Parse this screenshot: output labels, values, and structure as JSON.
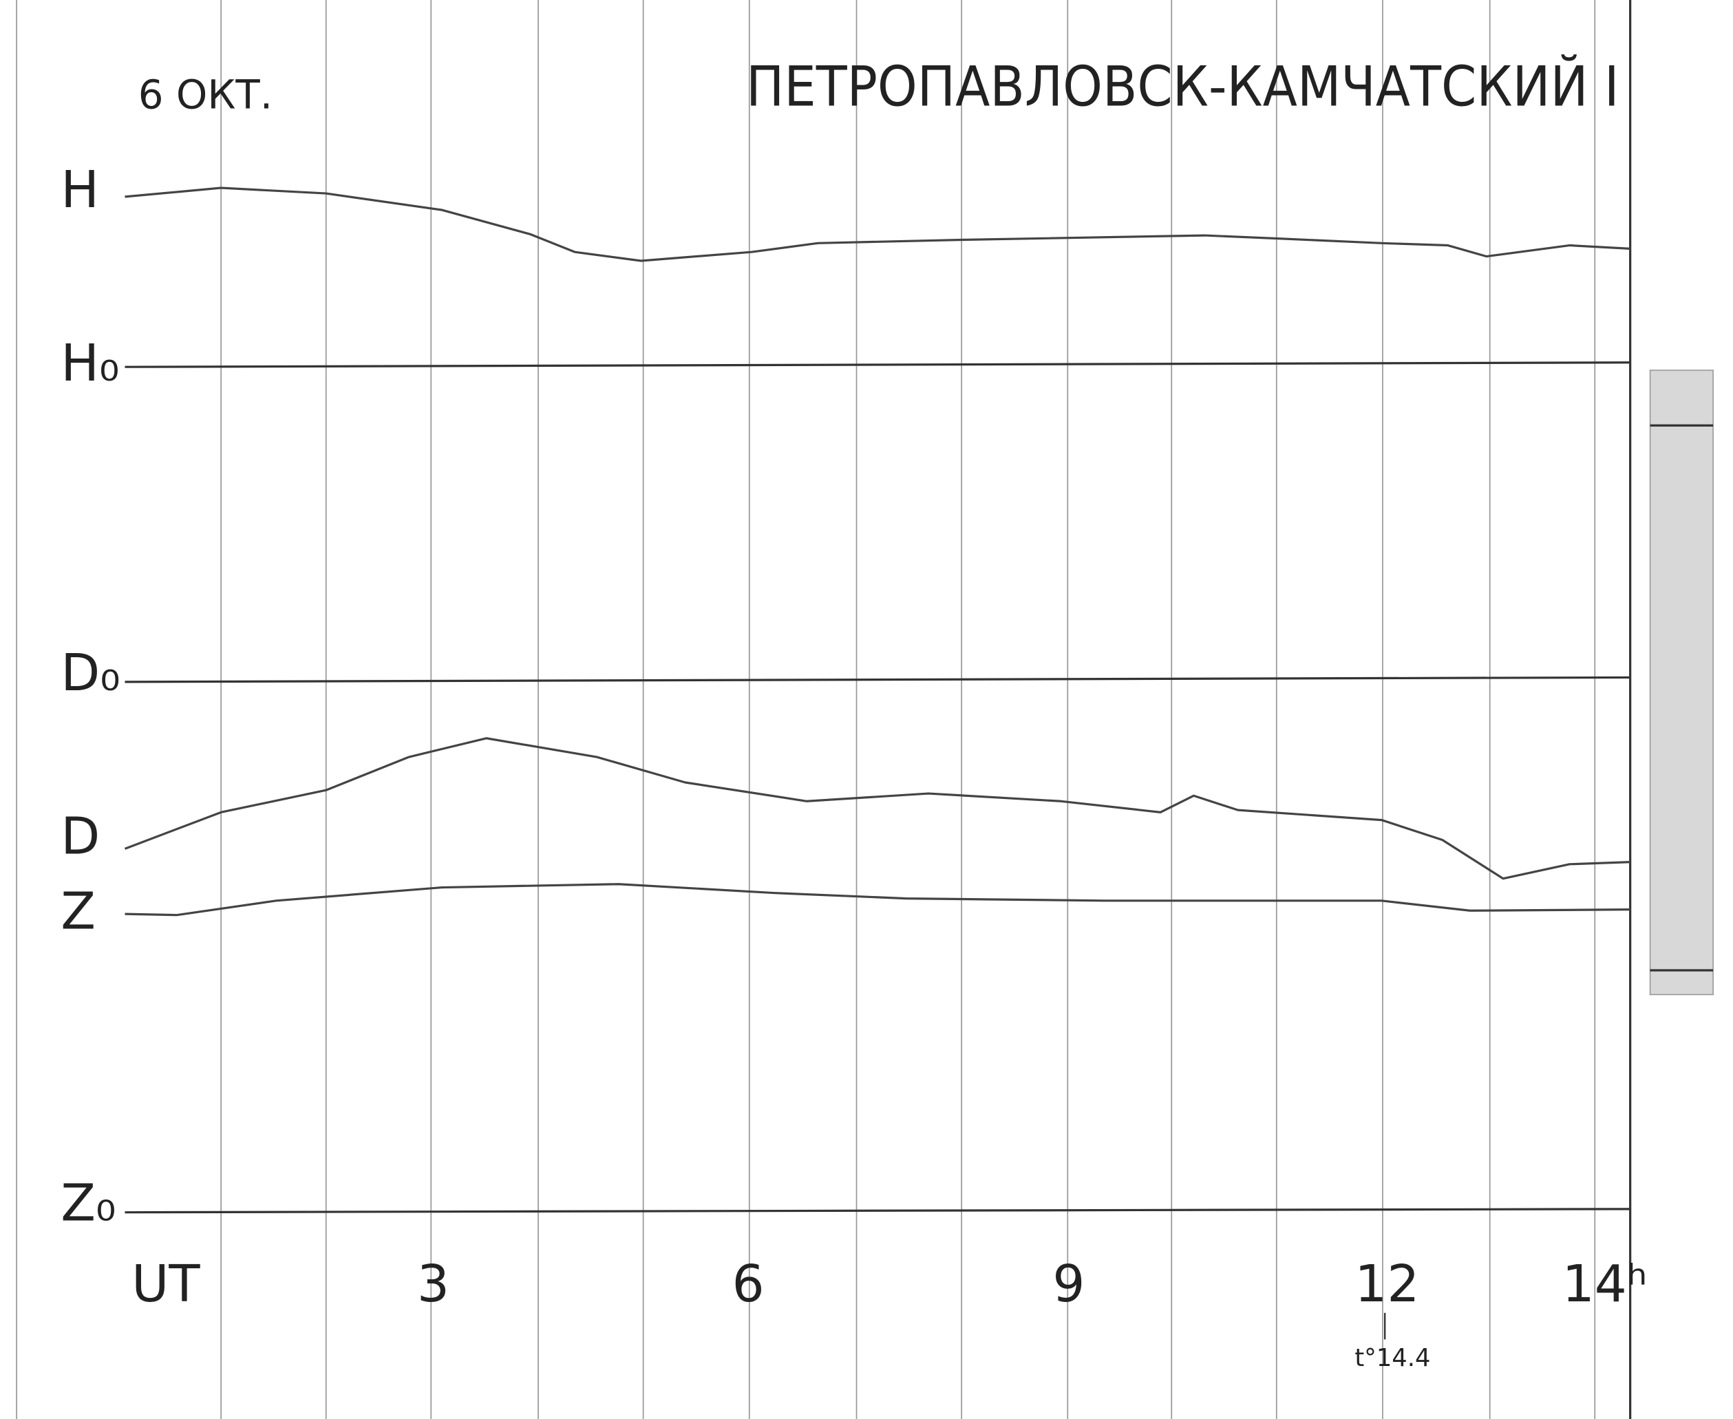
{
  "header": {
    "date": "6 ОКТ.",
    "station": "ПЕТРОПАВЛОВСК-КАМЧАТСКИЙ I"
  },
  "traces": [
    {
      "label": "H"
    },
    {
      "label": "H₀"
    },
    {
      "label": "D₀"
    },
    {
      "label": "D"
    },
    {
      "label": "Z"
    },
    {
      "label": "Z₀"
    }
  ],
  "time_axis": [
    "UT",
    "3",
    "6",
    "9",
    "12",
    "14ʰ"
  ],
  "annotation": "t°14.4"
}
